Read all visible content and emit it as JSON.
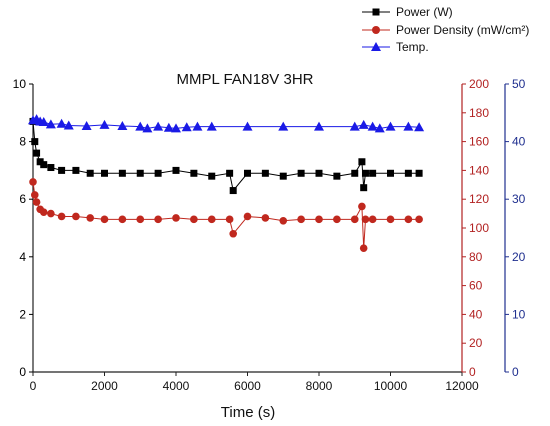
{
  "chart_data": {
    "type": "scatter",
    "title": "MMPL FAN18V 3HR",
    "xlabel": "Time (s)",
    "xlim": [
      0,
      12000
    ],
    "xticks": [
      0,
      2000,
      4000,
      6000,
      8000,
      10000,
      12000
    ],
    "grid": false,
    "legend_position": "top-right",
    "axes": {
      "left": {
        "ylim": [
          0,
          10
        ],
        "ticks": [
          0,
          2,
          4,
          6,
          8,
          10
        ],
        "color": "#000000"
      },
      "right_inner": {
        "ylim": [
          0,
          200
        ],
        "ticks": [
          0,
          20,
          40,
          60,
          80,
          100,
          120,
          140,
          160,
          180,
          200
        ],
        "color": "#b22222"
      },
      "right_outer": {
        "ylim": [
          0,
          50
        ],
        "ticks": [
          0,
          10,
          20,
          30,
          40,
          50
        ],
        "color": "#1f2f8f"
      }
    },
    "series": [
      {
        "name": "Power (W)",
        "axis": "left",
        "color": "#000000",
        "marker": "square",
        "x": [
          0,
          50,
          100,
          200,
          300,
          500,
          800,
          1200,
          1600,
          2000,
          2500,
          3000,
          3500,
          4000,
          4500,
          5000,
          5500,
          5600,
          6000,
          6500,
          7000,
          7500,
          8000,
          8500,
          9000,
          9200,
          9250,
          9300,
          9500,
          10000,
          10500,
          10800
        ],
        "y": [
          8.7,
          8.0,
          7.6,
          7.3,
          7.2,
          7.1,
          7.0,
          7.0,
          6.9,
          6.9,
          6.9,
          6.9,
          6.9,
          7.0,
          6.9,
          6.8,
          6.9,
          6.3,
          6.9,
          6.9,
          6.8,
          6.9,
          6.9,
          6.8,
          6.9,
          7.3,
          6.4,
          6.9,
          6.9,
          6.9,
          6.9,
          6.9
        ]
      },
      {
        "name": "Power Density (mW/cm²)",
        "axis": "right_inner",
        "color": "#c0281e",
        "marker": "circle",
        "x": [
          0,
          50,
          100,
          200,
          300,
          500,
          800,
          1200,
          1600,
          2000,
          2500,
          3000,
          3500,
          4000,
          4500,
          5000,
          5500,
          5600,
          6000,
          6500,
          7000,
          7500,
          8000,
          8500,
          9000,
          9200,
          9250,
          9300,
          9500,
          10000,
          10500,
          10800
        ],
        "y": [
          132,
          123,
          118,
          113,
          111,
          110,
          108,
          108,
          107,
          106,
          106,
          106,
          106,
          107,
          106,
          106,
          106,
          96,
          108,
          107,
          105,
          106,
          106,
          106,
          106,
          115,
          86,
          106,
          106,
          106,
          106,
          106
        ]
      },
      {
        "name": "Temp.",
        "axis": "right_outer",
        "color": "#1a1ae6",
        "marker": "triangle",
        "x": [
          0,
          100,
          200,
          300,
          500,
          800,
          1000,
          1500,
          2000,
          2500,
          3000,
          3200,
          3500,
          3800,
          4000,
          4300,
          4600,
          5000,
          6000,
          7000,
          8000,
          9000,
          9250,
          9500,
          9700,
          10000,
          10500,
          10800
        ],
        "y": [
          43.7,
          43.9,
          43.5,
          43.4,
          43.0,
          43.1,
          42.8,
          42.7,
          42.9,
          42.7,
          42.6,
          42.3,
          42.6,
          42.4,
          42.3,
          42.5,
          42.6,
          42.6,
          42.6,
          42.6,
          42.6,
          42.6,
          42.9,
          42.6,
          42.3,
          42.6,
          42.6,
          42.5
        ]
      }
    ]
  }
}
